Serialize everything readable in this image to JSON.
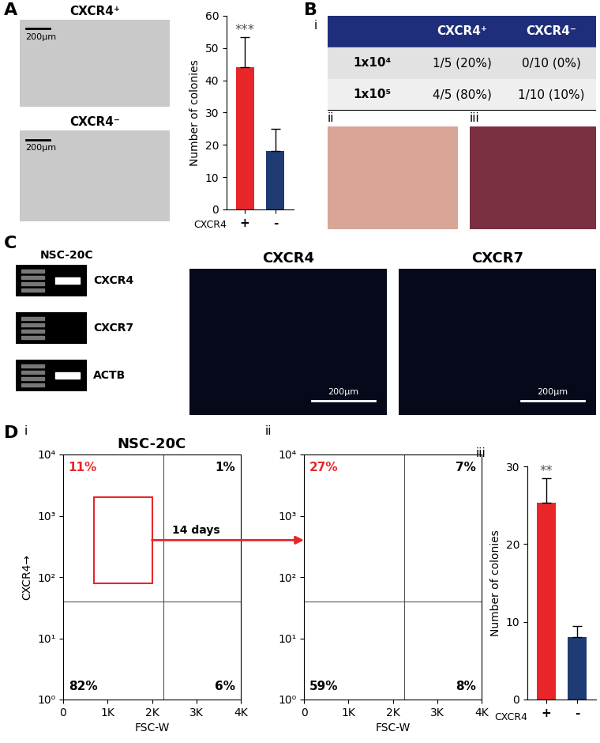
{
  "figure": {
    "panels": [
      "A",
      "B",
      "C",
      "D"
    ],
    "A_images": [
      {
        "title": "CXCR4⁺",
        "scale_bar": "200μm"
      },
      {
        "title": "CXCR4⁻",
        "scale_bar": "200μm"
      }
    ],
    "B_table": {
      "label": "i",
      "header": [
        "CXCR4⁺",
        "CXCR4⁻"
      ],
      "rows": [
        {
          "label": "1x10⁴",
          "cells": [
            "1/5 (20%)",
            "0/10 (0%)"
          ]
        },
        {
          "label": "1x10⁵",
          "cells": [
            "4/5 (80%)",
            "1/10 (10%)"
          ]
        }
      ]
    },
    "B_photos": [
      {
        "label": "ii"
      },
      {
        "label": "iii"
      }
    ],
    "C_gel": {
      "lane": "NSC-20C",
      "rows": [
        {
          "label": "CXCR4",
          "band": true
        },
        {
          "label": "CXCR7",
          "band": false
        },
        {
          "label": "ACTB",
          "band": true
        }
      ]
    },
    "C_images": [
      {
        "title": "CXCR4",
        "scale_bar": "200μm"
      },
      {
        "title": "CXCR7",
        "scale_bar": "200μm"
      }
    ],
    "D_arrow": "14 days"
  },
  "chart_data": [
    {
      "type": "bar",
      "ylabel": "Number of colonies",
      "xlabel": "CXCR4",
      "categories": [
        "+",
        "-"
      ],
      "values": [
        44,
        18
      ],
      "errors": [
        9.5,
        7
      ],
      "colors": [
        "#e8262a",
        "#1f3b73"
      ],
      "ylim": [
        0,
        60
      ],
      "yticks": [
        0,
        10,
        20,
        30,
        40,
        50,
        60
      ],
      "annotations": [
        {
          "category": "+",
          "text": "***"
        }
      ]
    },
    {
      "type": "quadrant",
      "label": "i",
      "title": "NSC-20C",
      "xlabel": "FSC-W",
      "ylabel": "CXCR4→",
      "log": "y",
      "xlim": [
        0,
        4000
      ],
      "xticks": [
        0,
        {
          "value": 1000,
          "label": "1K"
        },
        {
          "value": 2000,
          "label": "2K"
        },
        {
          "value": 3000,
          "label": "3K"
        },
        {
          "value": 4000,
          "label": "4K"
        }
      ],
      "ylim": [
        1,
        10000
      ],
      "yticks": [
        {
          "value": 1,
          "label": "10⁰"
        },
        {
          "value": 10,
          "label": "10¹"
        },
        {
          "value": 100,
          "label": "10²"
        },
        {
          "value": 1000,
          "label": "10³"
        },
        {
          "value": 10000,
          "label": "10⁴"
        }
      ],
      "gates": {
        "x": 2250,
        "y": 40
      },
      "gate_box": {
        "x": [
          700,
          2000
        ],
        "y": [
          80,
          2000
        ]
      },
      "color": "#e8262a",
      "quadrants": {
        "upper_left": {
          "value": 11,
          "label": "11%"
        },
        "upper_right": {
          "value": 1,
          "label": "1%"
        },
        "lower_left": {
          "value": 82,
          "label": "82%"
        },
        "lower_right": {
          "value": 6,
          "label": "6%"
        }
      }
    },
    {
      "type": "quadrant",
      "label": "ii",
      "xlabel": "FSC-W",
      "log": "y",
      "xlim": [
        0,
        4000
      ],
      "xticks": [
        0,
        {
          "value": 1000,
          "label": "1K"
        },
        {
          "value": 2000,
          "label": "2K"
        },
        {
          "value": 3000,
          "label": "3K"
        },
        {
          "value": 4000,
          "label": "4K"
        }
      ],
      "ylim": [
        1,
        10000
      ],
      "yticks": [
        {
          "value": 1,
          "label": "10⁰"
        },
        {
          "value": 10,
          "label": "10¹"
        },
        {
          "value": 100,
          "label": "10²"
        },
        {
          "value": 1000,
          "label": "10³"
        },
        {
          "value": 10000,
          "label": "10⁴"
        }
      ],
      "gates": {
        "x": 2250,
        "y": 40
      },
      "color": "#e8262a",
      "quadrants": {
        "upper_left": {
          "value": 27,
          "label": "27%"
        },
        "upper_right": {
          "value": 7,
          "label": "7%"
        },
        "lower_left": {
          "value": 59,
          "label": "59%"
        },
        "lower_right": {
          "value": 8,
          "label": "8%"
        }
      }
    },
    {
      "type": "bar",
      "label": "iii",
      "ylabel": "Number of colonies",
      "xlabel": "CXCR4",
      "categories": [
        "+",
        "-"
      ],
      "values": [
        25.3,
        8
      ],
      "errors": [
        3.2,
        1.5
      ],
      "colors": [
        "#e8262a",
        "#1f3b73"
      ],
      "ylim": [
        0,
        30
      ],
      "yticks": [
        0,
        10,
        20,
        30
      ],
      "annotations": [
        {
          "category": "+",
          "text": "**"
        }
      ]
    }
  ]
}
